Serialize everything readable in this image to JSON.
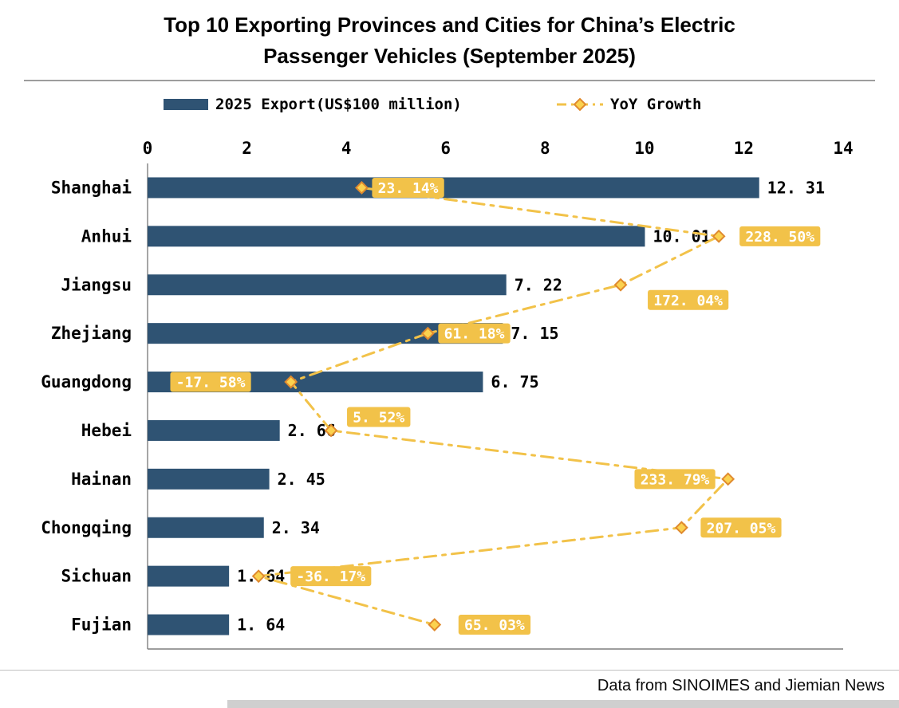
{
  "title": {
    "line1": "Top 10 Exporting Provinces and Cities for China’s Electric",
    "line2": "Passenger Vehicles (September 2025)"
  },
  "legend": {
    "bars_label": "2025 Export(US$100 million)",
    "line_label": "YoY Growth"
  },
  "footer": {
    "source": "Data from SINOIMES and Jiemian News"
  },
  "colors": {
    "bar": "#2F5373",
    "line": "#F2C249",
    "marker_fill": "#FBD24F",
    "marker_stroke": "#E08A2E",
    "label_bg": "#F2C249",
    "label_text": "#FFFFFF",
    "axis": "#7f7f7f",
    "text": "#000000"
  },
  "chart_data": {
    "type": "bar",
    "orientation": "horizontal",
    "title": "Top 10 Exporting Provinces and Cities for China’s Electric Passenger Vehicles (September 2025)",
    "categories": [
      "Shanghai",
      "Anhui",
      "Jiangsu",
      "Zhejiang",
      "Guangdong",
      "Hebei",
      "Hainan",
      "Chongqing",
      "Sichuan",
      "Fujian"
    ],
    "series": [
      {
        "name": "2025 Export(US$100 million)",
        "type": "bar",
        "values": [
          12.31,
          10.01,
          7.22,
          7.15,
          6.75,
          2.66,
          2.45,
          2.34,
          1.64,
          1.64
        ]
      },
      {
        "name": "YoY Growth",
        "type": "line",
        "unit": "%",
        "values": [
          23.14,
          228.5,
          172.04,
          61.18,
          -17.58,
          5.52,
          233.79,
          207.05,
          -36.17,
          65.03
        ]
      }
    ],
    "x_axis": {
      "min": 0,
      "max": 14,
      "ticks": [
        0,
        2,
        4,
        6,
        8,
        10,
        12,
        14
      ],
      "position": "top"
    },
    "secondary_axis": {
      "min": -100,
      "max": 300,
      "visible": false
    },
    "legend_position": "top",
    "grid": false
  }
}
